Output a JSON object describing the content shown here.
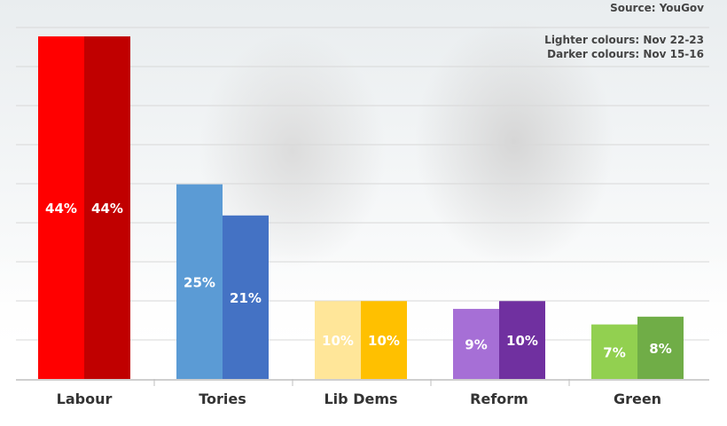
{
  "source": "Source: YouGov",
  "note_light": "Lighter colours: Nov 22-23",
  "note_dark": "Darker colours: Nov 15-16",
  "chart_data": {
    "type": "bar",
    "categories": [
      "Labour",
      "Tories",
      "Lib Dems",
      "Reform",
      "Green"
    ],
    "series": [
      {
        "name": "Nov 22-23",
        "values": [
          44,
          25,
          10,
          9,
          7
        ]
      },
      {
        "name": "Nov 15-16",
        "values": [
          44,
          21,
          10,
          10,
          8
        ]
      }
    ],
    "value_suffix": "%",
    "ylim": [
      0,
      44
    ],
    "grid": true,
    "colors_light": [
      "#ff0000",
      "#5b9bd5",
      "#ffe699",
      "#a66fd6",
      "#92d050"
    ],
    "colors_dark": [
      "#c00000",
      "#4472c4",
      "#ffc000",
      "#7030a0",
      "#70ad47"
    ]
  }
}
